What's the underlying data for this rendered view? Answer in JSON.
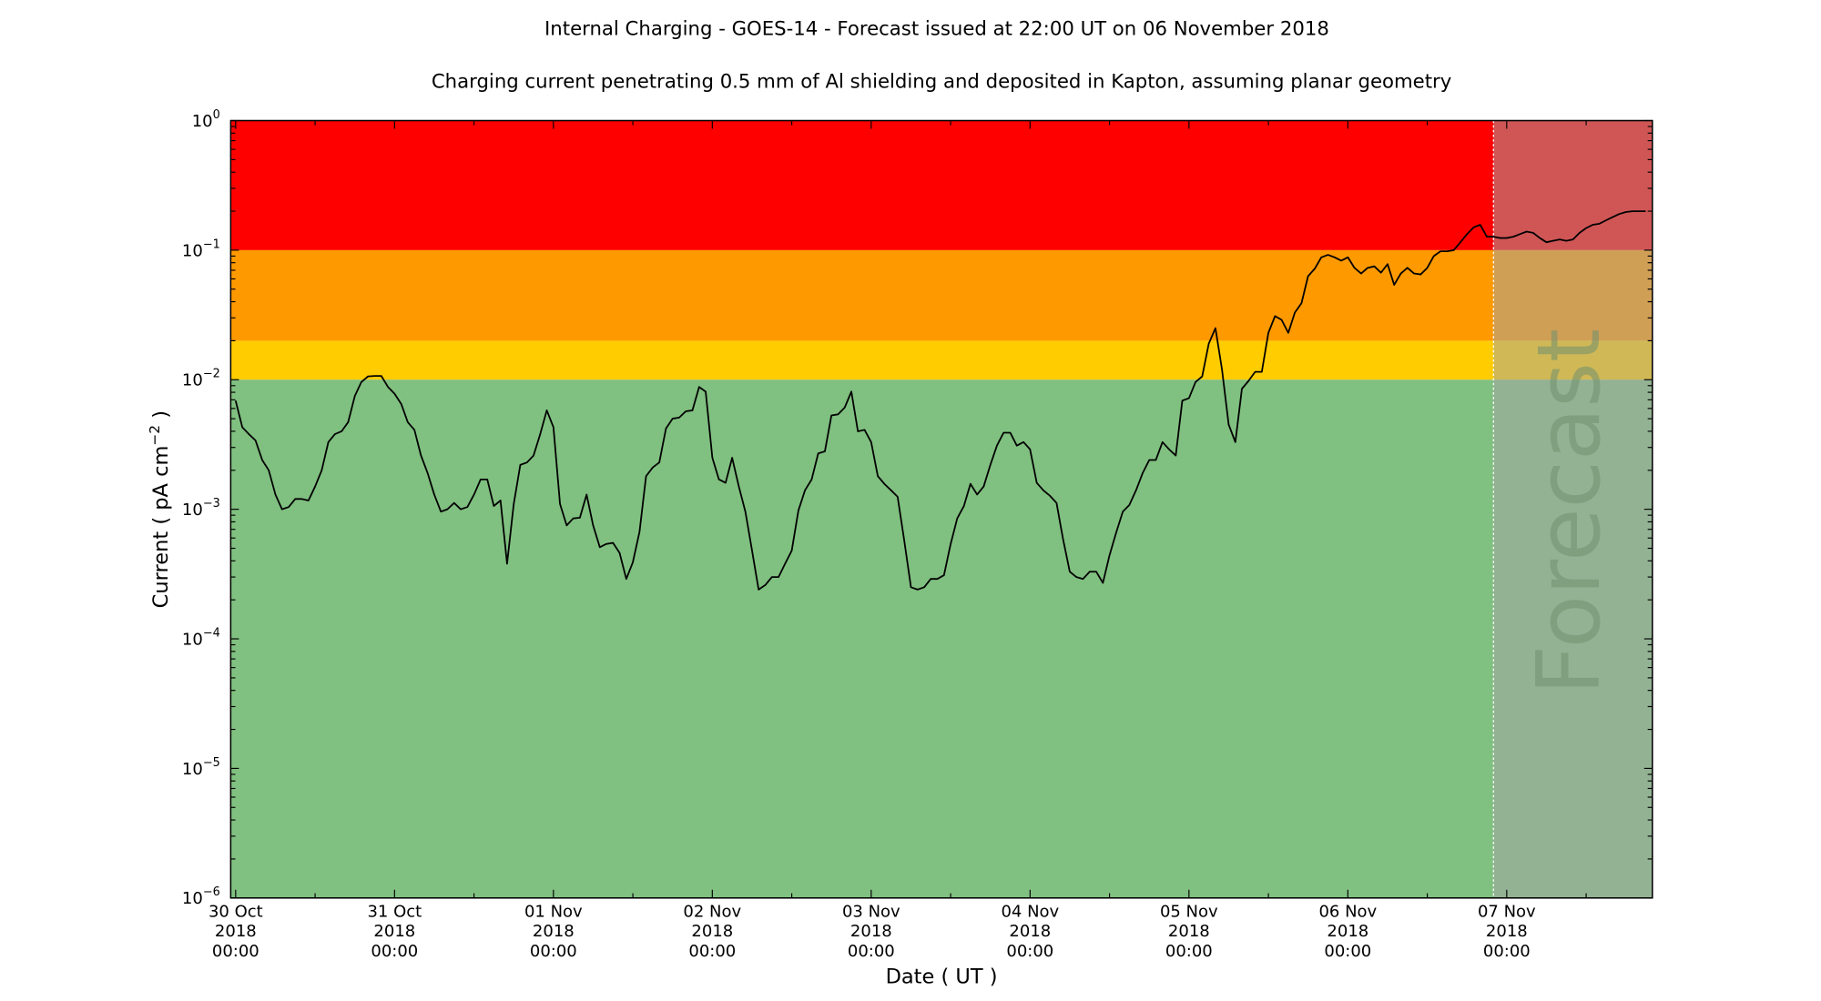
{
  "chart_data": {
    "type": "line",
    "title": "Internal Charging - GOES-14 - Forecast issued at 22:00 UT on 06 November 2018",
    "subtitle": "Charging current penetrating 0.5 mm of Al shielding and deposited in Kapton, assuming planar geometry",
    "xlabel": "Date ( UT )",
    "ylabel": {
      "text": "Current ( pA cm",
      "superscript": "−2",
      "close": " )"
    },
    "yscale": "log",
    "ylim": [
      1e-06,
      1
    ],
    "xlim": [
      "2018-10-29 23:15",
      "2018-11-07 22:00"
    ],
    "grid": false,
    "legend": "none",
    "y_ticks": [
      {
        "value": 1,
        "base": "10",
        "exp": "0"
      },
      {
        "value": 0.1,
        "base": "10",
        "exp": "−1"
      },
      {
        "value": 0.01,
        "base": "10",
        "exp": "−2"
      },
      {
        "value": 0.001,
        "base": "10",
        "exp": "−3"
      },
      {
        "value": 0.0001,
        "base": "10",
        "exp": "−4"
      },
      {
        "value": 1e-05,
        "base": "10",
        "exp": "−5"
      },
      {
        "value": 1e-06,
        "base": "10",
        "exp": "−6"
      }
    ],
    "x_ticks": [
      {
        "value": "2018-10-30 00:00",
        "lines": [
          "30 Oct",
          "2018",
          "00:00"
        ]
      },
      {
        "value": "2018-10-31 00:00",
        "lines": [
          "31 Oct",
          "2018",
          "00:00"
        ]
      },
      {
        "value": "2018-11-01 00:00",
        "lines": [
          "01 Nov",
          "2018",
          "00:00"
        ]
      },
      {
        "value": "2018-11-02 00:00",
        "lines": [
          "02 Nov",
          "2018",
          "00:00"
        ]
      },
      {
        "value": "2018-11-03 00:00",
        "lines": [
          "03 Nov",
          "2018",
          "00:00"
        ]
      },
      {
        "value": "2018-11-04 00:00",
        "lines": [
          "04 Nov",
          "2018",
          "00:00"
        ]
      },
      {
        "value": "2018-11-05 00:00",
        "lines": [
          "05 Nov",
          "2018",
          "00:00"
        ]
      },
      {
        "value": "2018-11-06 00:00",
        "lines": [
          "06 Nov",
          "2018",
          "00:00"
        ]
      },
      {
        "value": "2018-11-07 00:00",
        "lines": [
          "07 Nov",
          "2018",
          "00:00"
        ]
      }
    ],
    "threshold_bands": [
      {
        "from": 0.1,
        "to": 1,
        "color": "#ff0000"
      },
      {
        "from": 0.02,
        "to": 0.1,
        "color": "#fe9900"
      },
      {
        "from": 0.01,
        "to": 0.02,
        "color": "#ffcc00"
      },
      {
        "from": 1e-06,
        "to": 0.01,
        "color": "#80c080"
      }
    ],
    "forecast": {
      "start": "2018-11-06 22:00",
      "label": "Forecast",
      "overlay_color": "#a4a4a4"
    },
    "line_color": "#000000",
    "series": [
      {
        "x": [
          "2018-10-30 00:00",
          "2018-10-30 01:00",
          "2018-10-30 02:00",
          "2018-10-30 03:00",
          "2018-10-30 04:00",
          "2018-10-30 05:00",
          "2018-10-30 06:00",
          "2018-10-30 07:00",
          "2018-10-30 08:00",
          "2018-10-30 09:00",
          "2018-10-30 10:00",
          "2018-10-30 11:00",
          "2018-10-30 12:00",
          "2018-10-30 13:00",
          "2018-10-30 14:00",
          "2018-10-30 15:00",
          "2018-10-30 16:00",
          "2018-10-30 17:00",
          "2018-10-30 18:00",
          "2018-10-30 19:00",
          "2018-10-30 20:00",
          "2018-10-30 21:00",
          "2018-10-30 22:00",
          "2018-10-30 23:00",
          "2018-10-31 00:00",
          "2018-10-31 01:00",
          "2018-10-31 02:00",
          "2018-10-31 03:00",
          "2018-10-31 04:00",
          "2018-10-31 05:00",
          "2018-10-31 06:00",
          "2018-10-31 07:00",
          "2018-10-31 08:00",
          "2018-10-31 09:00",
          "2018-10-31 10:00",
          "2018-10-31 11:00",
          "2018-10-31 12:00",
          "2018-10-31 13:00",
          "2018-10-31 14:00",
          "2018-10-31 15:00",
          "2018-10-31 16:00",
          "2018-10-31 17:00",
          "2018-10-31 18:00",
          "2018-10-31 19:00",
          "2018-10-31 20:00",
          "2018-10-31 21:00",
          "2018-10-31 22:00",
          "2018-10-31 23:00",
          "2018-11-01 00:00",
          "2018-11-01 01:00",
          "2018-11-01 02:00",
          "2018-11-01 03:00",
          "2018-11-01 04:00",
          "2018-11-01 05:00",
          "2018-11-01 06:00",
          "2018-11-01 07:00",
          "2018-11-01 08:00",
          "2018-11-01 09:00",
          "2018-11-01 10:00",
          "2018-11-01 11:00",
          "2018-11-01 12:00",
          "2018-11-01 13:00",
          "2018-11-01 14:00",
          "2018-11-01 15:00",
          "2018-11-01 16:00",
          "2018-11-01 17:00",
          "2018-11-01 18:00",
          "2018-11-01 19:00",
          "2018-11-01 20:00",
          "2018-11-01 21:00",
          "2018-11-01 22:00",
          "2018-11-01 23:00",
          "2018-11-02 00:00",
          "2018-11-02 01:00",
          "2018-11-02 02:00",
          "2018-11-02 03:00",
          "2018-11-02 04:00",
          "2018-11-02 05:00",
          "2018-11-02 06:00",
          "2018-11-02 07:00",
          "2018-11-02 08:00",
          "2018-11-02 09:00",
          "2018-11-02 10:00",
          "2018-11-02 11:00",
          "2018-11-02 12:00",
          "2018-11-02 13:00",
          "2018-11-02 14:00",
          "2018-11-02 15:00",
          "2018-11-02 16:00",
          "2018-11-02 17:00",
          "2018-11-02 18:00",
          "2018-11-02 19:00",
          "2018-11-02 20:00",
          "2018-11-02 21:00",
          "2018-11-02 22:00",
          "2018-11-02 23:00",
          "2018-11-03 00:00",
          "2018-11-03 01:00",
          "2018-11-03 02:00",
          "2018-11-03 03:00",
          "2018-11-03 04:00",
          "2018-11-03 05:00",
          "2018-11-03 06:00",
          "2018-11-03 07:00",
          "2018-11-03 08:00",
          "2018-11-03 09:00",
          "2018-11-03 10:00",
          "2018-11-03 11:00",
          "2018-11-03 12:00",
          "2018-11-03 13:00",
          "2018-11-03 14:00",
          "2018-11-03 15:00",
          "2018-11-03 16:00",
          "2018-11-03 17:00",
          "2018-11-03 18:00",
          "2018-11-03 19:00",
          "2018-11-03 20:00",
          "2018-11-03 21:00",
          "2018-11-03 22:00",
          "2018-11-03 23:00",
          "2018-11-04 00:00",
          "2018-11-04 01:00",
          "2018-11-04 02:00",
          "2018-11-04 03:00",
          "2018-11-04 04:00",
          "2018-11-04 05:00",
          "2018-11-04 06:00",
          "2018-11-04 07:00",
          "2018-11-04 08:00",
          "2018-11-04 09:00",
          "2018-11-04 10:00",
          "2018-11-04 11:00",
          "2018-11-04 12:00",
          "2018-11-04 13:00",
          "2018-11-04 14:00",
          "2018-11-04 15:00",
          "2018-11-04 16:00",
          "2018-11-04 17:00",
          "2018-11-04 18:00",
          "2018-11-04 19:00",
          "2018-11-04 20:00",
          "2018-11-04 21:00",
          "2018-11-04 22:00",
          "2018-11-04 23:00",
          "2018-11-05 00:00",
          "2018-11-05 01:00",
          "2018-11-05 02:00",
          "2018-11-05 03:00",
          "2018-11-05 04:00",
          "2018-11-05 05:00",
          "2018-11-05 06:00",
          "2018-11-05 07:00",
          "2018-11-05 08:00",
          "2018-11-05 09:00",
          "2018-11-05 10:00",
          "2018-11-05 11:00",
          "2018-11-05 12:00",
          "2018-11-05 13:00",
          "2018-11-05 14:00",
          "2018-11-05 15:00",
          "2018-11-05 16:00",
          "2018-11-05 17:00",
          "2018-11-05 18:00",
          "2018-11-05 19:00",
          "2018-11-05 20:00",
          "2018-11-05 21:00",
          "2018-11-05 22:00",
          "2018-11-05 23:00",
          "2018-11-06 00:00",
          "2018-11-06 01:00",
          "2018-11-06 02:00",
          "2018-11-06 03:00",
          "2018-11-06 04:00",
          "2018-11-06 05:00",
          "2018-11-06 06:00",
          "2018-11-06 07:00",
          "2018-11-06 08:00",
          "2018-11-06 09:00",
          "2018-11-06 10:00",
          "2018-11-06 11:00",
          "2018-11-06 12:00",
          "2018-11-06 13:00",
          "2018-11-06 14:00",
          "2018-11-06 15:00",
          "2018-11-06 16:00",
          "2018-11-06 17:00",
          "2018-11-06 18:00",
          "2018-11-06 19:00",
          "2018-11-06 20:00",
          "2018-11-06 21:00",
          "2018-11-06 22:00",
          "2018-11-06 23:00",
          "2018-11-07 00:00",
          "2018-11-07 01:00",
          "2018-11-07 02:00",
          "2018-11-07 03:00",
          "2018-11-07 04:00",
          "2018-11-07 05:00",
          "2018-11-07 06:00",
          "2018-11-07 07:00",
          "2018-11-07 08:00",
          "2018-11-07 09:00",
          "2018-11-07 10:00",
          "2018-11-07 11:00",
          "2018-11-07 12:00",
          "2018-11-07 13:00",
          "2018-11-07 14:00",
          "2018-11-07 15:00",
          "2018-11-07 16:00",
          "2018-11-07 17:00",
          "2018-11-07 18:00",
          "2018-11-07 19:00",
          "2018-11-07 20:00",
          "2018-11-07 21:00"
        ],
        "y": [
          0.0069,
          0.0043,
          0.0038,
          0.0034,
          0.0024,
          0.002,
          0.0013,
          0.001,
          0.00104,
          0.0012,
          0.0012,
          0.00117,
          0.0015,
          0.002,
          0.0033,
          0.0038,
          0.004,
          0.0047,
          0.0075,
          0.0096,
          0.0106,
          0.0107,
          0.0107,
          0.0088,
          0.0078,
          0.0065,
          0.0047,
          0.0041,
          0.0026,
          0.0019,
          0.0013,
          0.00096,
          0.001,
          0.00112,
          0.001,
          0.00104,
          0.0013,
          0.0017,
          0.0017,
          0.00106,
          0.00117,
          0.00038,
          0.0011,
          0.0022,
          0.0023,
          0.0026,
          0.0038,
          0.0058,
          0.0043,
          0.0011,
          0.00075,
          0.00085,
          0.00086,
          0.0013,
          0.00075,
          0.00051,
          0.00054,
          0.00055,
          0.00046,
          0.00029,
          0.00039,
          0.00067,
          0.0018,
          0.0021,
          0.0023,
          0.0042,
          0.005,
          0.0051,
          0.0057,
          0.0058,
          0.0088,
          0.0081,
          0.0025,
          0.0017,
          0.0016,
          0.0025,
          0.0015,
          0.00096,
          0.00048,
          0.00024,
          0.00026,
          0.0003,
          0.0003,
          0.00038,
          0.00048,
          0.00098,
          0.0014,
          0.0017,
          0.0027,
          0.0028,
          0.0053,
          0.0054,
          0.0061,
          0.0081,
          0.004,
          0.0041,
          0.0033,
          0.0018,
          0.00157,
          0.0014,
          0.00125,
          0.00057,
          0.00025,
          0.00024,
          0.00025,
          0.00029,
          0.00029,
          0.00031,
          0.00054,
          0.00085,
          0.00106,
          0.00157,
          0.0013,
          0.0015,
          0.0022,
          0.0031,
          0.0039,
          0.0039,
          0.0031,
          0.0033,
          0.0029,
          0.0016,
          0.0014,
          0.00127,
          0.00112,
          0.00058,
          0.00033,
          0.0003,
          0.00029,
          0.00033,
          0.00033,
          0.00027,
          0.00044,
          0.00066,
          0.00096,
          0.00108,
          0.0014,
          0.0019,
          0.0024,
          0.0024,
          0.0033,
          0.0029,
          0.0026,
          0.0069,
          0.0072,
          0.0096,
          0.0106,
          0.019,
          0.025,
          0.012,
          0.0045,
          0.0033,
          0.0085,
          0.0098,
          0.0115,
          0.0115,
          0.023,
          0.031,
          0.029,
          0.023,
          0.033,
          0.039,
          0.063,
          0.072,
          0.088,
          0.092,
          0.088,
          0.083,
          0.088,
          0.073,
          0.066,
          0.073,
          0.075,
          0.067,
          0.078,
          0.054,
          0.066,
          0.073,
          0.066,
          0.065,
          0.073,
          0.09,
          0.098,
          0.098,
          0.1,
          0.115,
          0.133,
          0.15,
          0.157,
          0.127,
          0.127,
          0.124,
          0.124,
          0.127,
          0.133,
          0.139,
          0.136,
          0.124,
          0.115,
          0.118,
          0.121,
          0.118,
          0.121,
          0.136,
          0.148,
          0.157,
          0.16,
          0.17,
          0.18,
          0.19,
          0.197,
          0.2,
          0.2,
          0.2
        ]
      }
    ]
  }
}
